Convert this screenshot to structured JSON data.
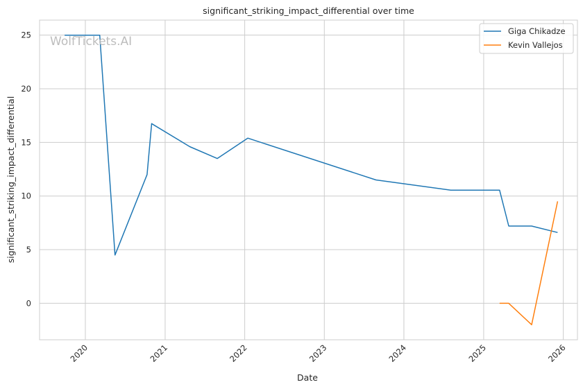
{
  "chart_data": {
    "type": "line",
    "title": "significant_striking_impact_differential over time",
    "xlabel": "Date",
    "ylabel": "significant_striking_impact_differential",
    "watermark": "WolfTickets.AI",
    "x_ticks": [
      "2020",
      "2021",
      "2022",
      "2023",
      "2024",
      "2025",
      "2026"
    ],
    "y_ticks": [
      0,
      5,
      10,
      15,
      20,
      25
    ],
    "xlim": [
      "2019-06-05",
      "2026-03-07"
    ],
    "ylim": [
      -3.4,
      26.4
    ],
    "grid": true,
    "legend_position": "top-right",
    "series": [
      {
        "name": "Giga Chikadze",
        "color": "#1f77b4",
        "points": [
          [
            "2019-09-28",
            25.0
          ],
          [
            "2020-03-07",
            25.0
          ],
          [
            "2020-05-16",
            4.5
          ],
          [
            "2020-10-10",
            12.0
          ],
          [
            "2020-10-31",
            16.75
          ],
          [
            "2021-04-24",
            14.6
          ],
          [
            "2021-08-28",
            13.5
          ],
          [
            "2022-01-15",
            15.4
          ],
          [
            "2023-08-26",
            11.5
          ],
          [
            "2024-08-03",
            10.55
          ],
          [
            "2025-03-15",
            10.55
          ],
          [
            "2025-04-26",
            7.2
          ],
          [
            "2025-08-09",
            7.2
          ],
          [
            "2025-12-06",
            6.6
          ]
        ]
      },
      {
        "name": "Kevin Vallejos",
        "color": "#ff7f0e",
        "points": [
          [
            "2025-03-15",
            0.0
          ],
          [
            "2025-04-26",
            0.0
          ],
          [
            "2025-08-09",
            -2.0
          ],
          [
            "2025-12-06",
            9.5
          ]
        ]
      }
    ]
  }
}
